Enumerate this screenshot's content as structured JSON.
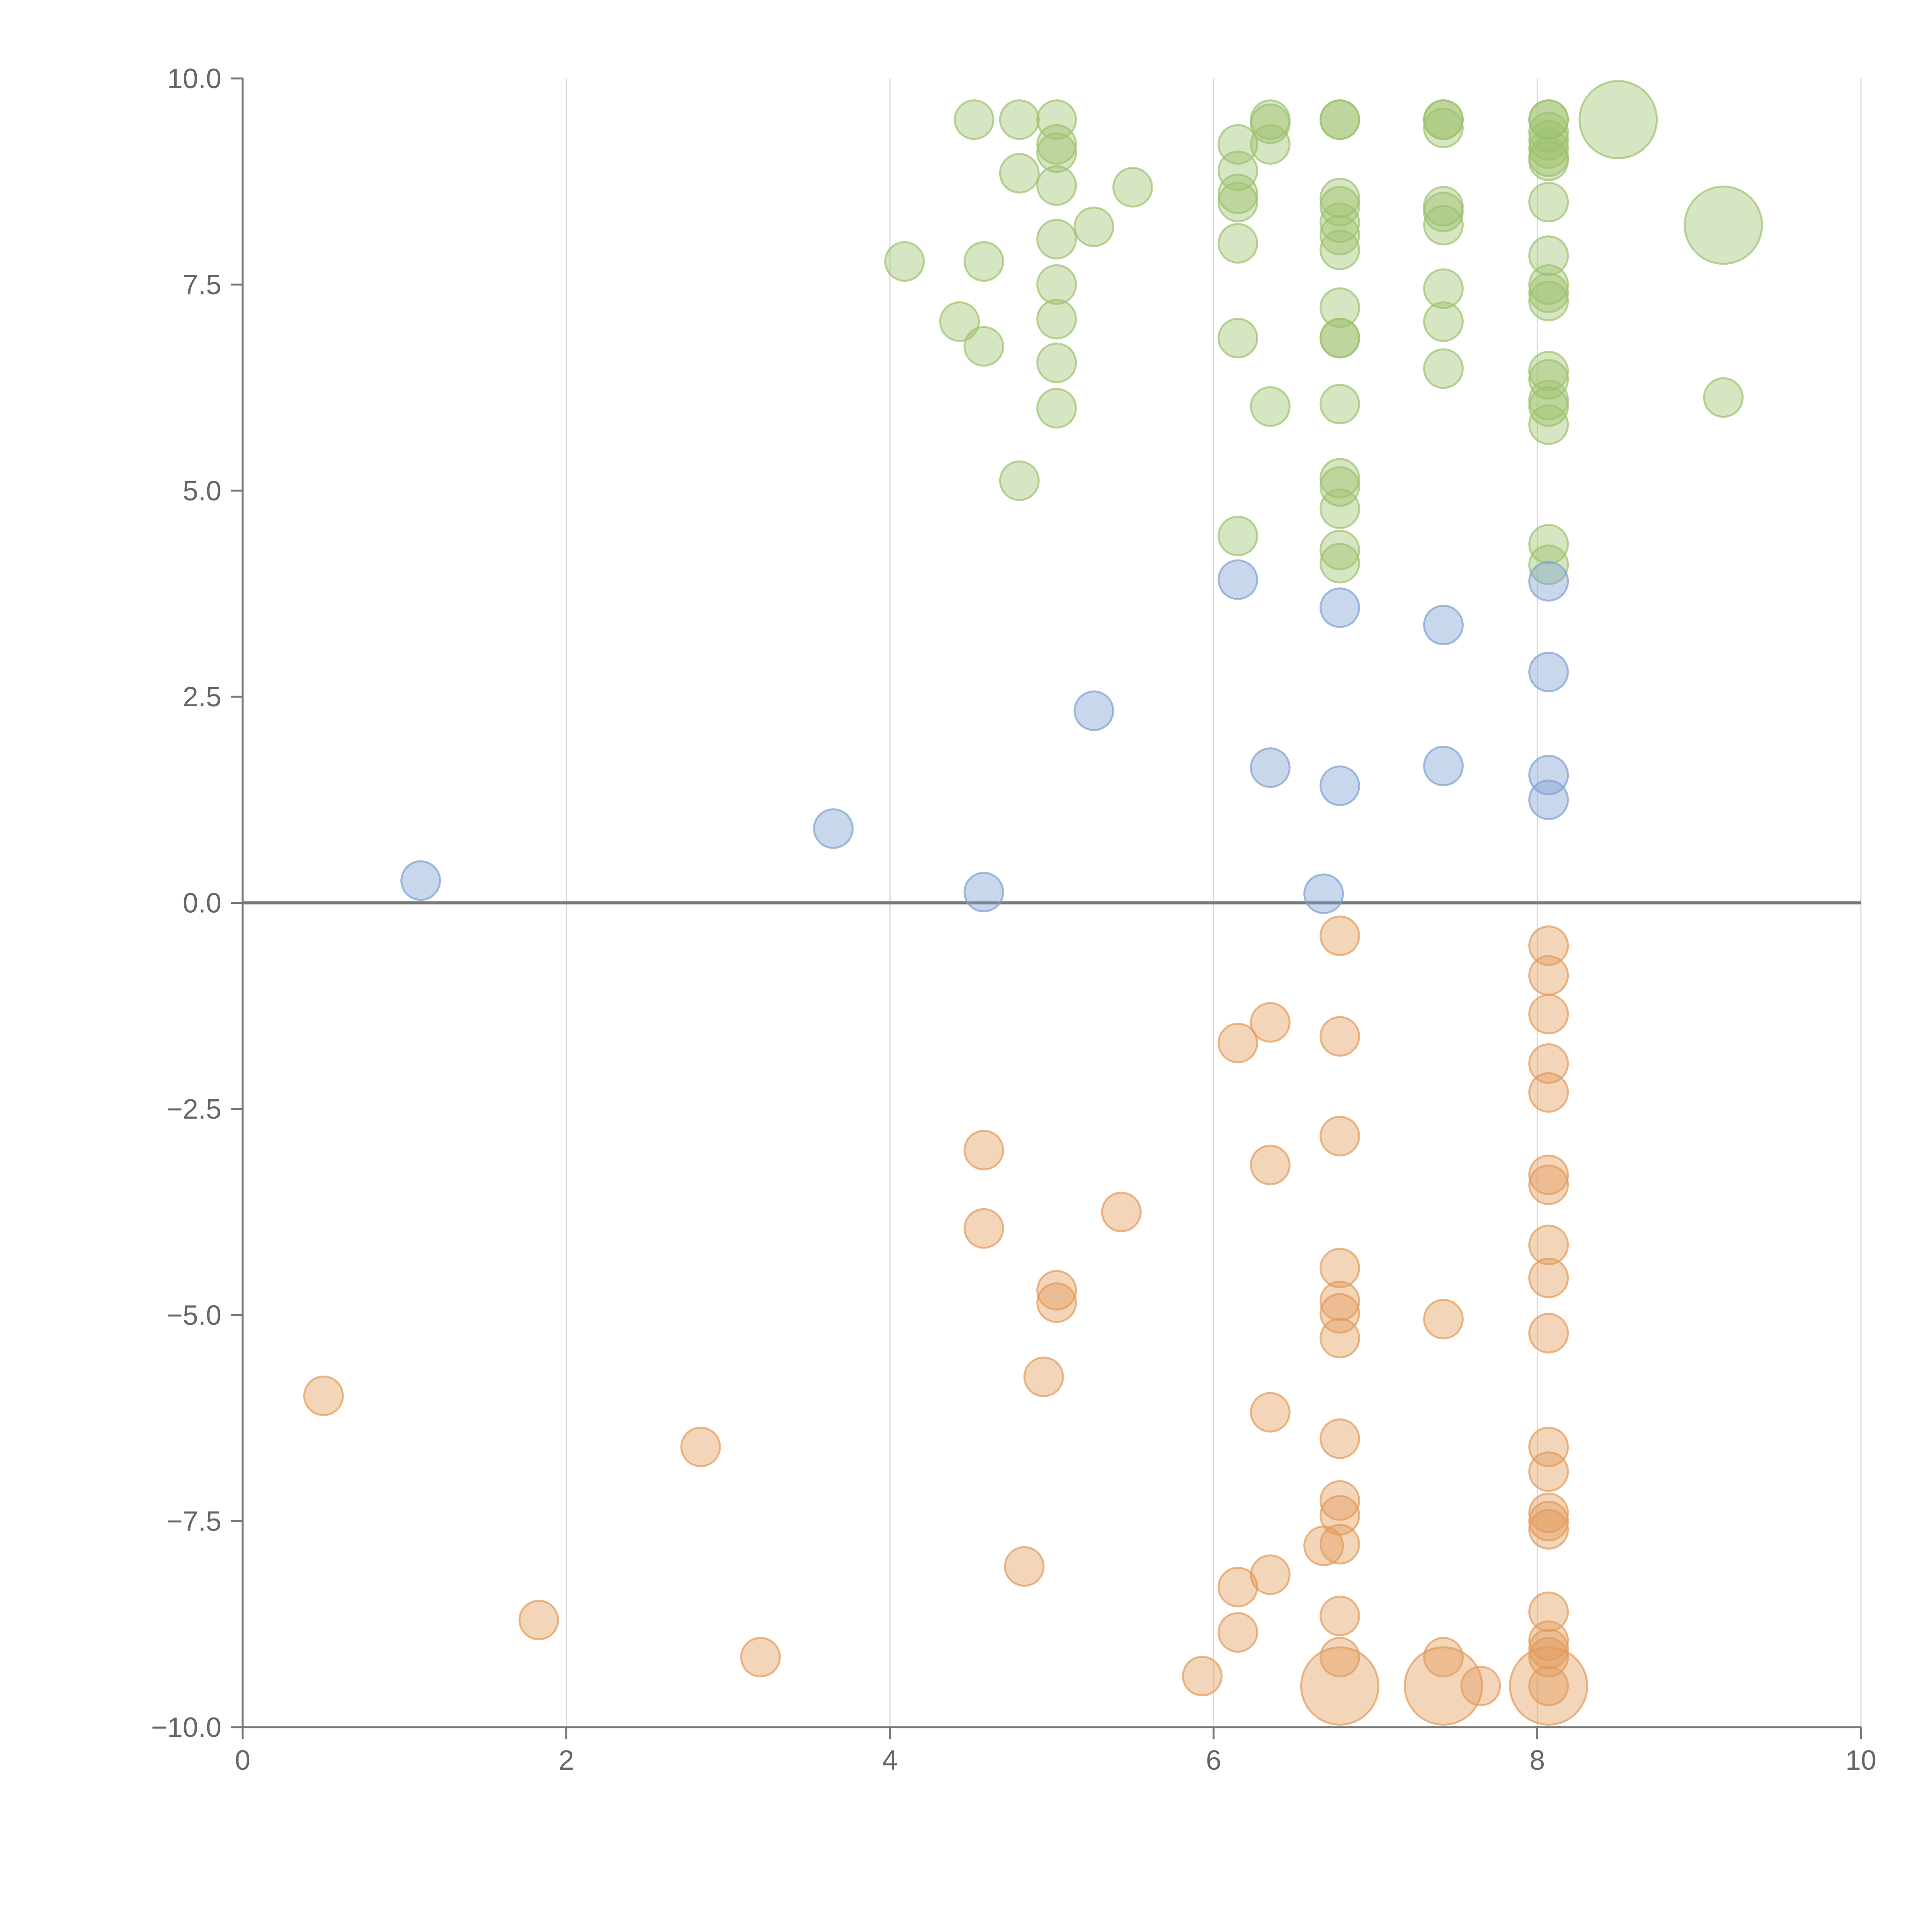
{
  "chart_data": {
    "type": "scatter",
    "title": "",
    "xlabel": "",
    "ylabel": "",
    "xlim": [
      0,
      10
    ],
    "ylim": [
      -10,
      10
    ],
    "x_ticks": [
      "0",
      "2",
      "4",
      "6",
      "8",
      "10"
    ],
    "y_ticks": [
      "10.0",
      "7.5",
      "5.0",
      "2.5",
      "0.0",
      "−2.5",
      "−5.0",
      "−7.5",
      "−10.0"
    ],
    "x_tick_values": [
      0,
      2,
      4,
      6,
      8,
      10
    ],
    "y_tick_values": [
      10,
      7.5,
      5,
      2.5,
      0,
      -2.5,
      -5,
      -7.5,
      -10
    ],
    "grid": "vertical",
    "zero_line": true,
    "legend": "none",
    "series": [
      {
        "color": "#9dc26e",
        "points": [
          [
            4.52,
            9.5
          ],
          [
            4.8,
            9.5
          ],
          [
            5.03,
            9.5
          ],
          [
            5.03,
            9.2
          ],
          [
            5.03,
            9.1
          ],
          [
            4.8,
            8.85
          ],
          [
            5.03,
            8.7
          ],
          [
            5.5,
            8.68
          ],
          [
            5.26,
            8.2
          ],
          [
            5.03,
            8.05
          ],
          [
            4.58,
            7.78
          ],
          [
            4.09,
            7.78
          ],
          [
            5.03,
            7.5
          ],
          [
            4.43,
            7.05
          ],
          [
            5.03,
            7.08
          ],
          [
            4.58,
            6.75
          ],
          [
            5.03,
            6.55
          ],
          [
            5.03,
            6.0
          ],
          [
            4.8,
            5.12
          ],
          [
            6.15,
            9.2
          ],
          [
            6.35,
            9.5
          ],
          [
            6.35,
            9.45
          ],
          [
            6.35,
            9.2
          ],
          [
            6.15,
            8.88
          ],
          [
            6.15,
            8.6
          ],
          [
            6.15,
            8.5
          ],
          [
            6.15,
            8.0
          ],
          [
            6.15,
            6.85
          ],
          [
            6.35,
            6.02
          ],
          [
            6.15,
            4.45
          ],
          [
            6.78,
            9.5
          ],
          [
            6.78,
            9.5
          ],
          [
            6.78,
            8.55
          ],
          [
            6.78,
            8.45
          ],
          [
            6.78,
            8.25
          ],
          [
            6.78,
            8.1
          ],
          [
            6.78,
            7.92
          ],
          [
            6.78,
            7.22
          ],
          [
            6.78,
            6.85
          ],
          [
            6.78,
            6.85
          ],
          [
            6.78,
            6.05
          ],
          [
            6.78,
            5.15
          ],
          [
            6.78,
            5.05
          ],
          [
            6.78,
            4.78
          ],
          [
            6.78,
            4.28
          ],
          [
            6.78,
            4.12
          ],
          [
            7.42,
            9.5
          ],
          [
            7.42,
            9.5
          ],
          [
            7.42,
            9.4
          ],
          [
            7.42,
            8.45
          ],
          [
            7.42,
            8.38
          ],
          [
            7.42,
            8.22
          ],
          [
            7.42,
            7.45
          ],
          [
            7.42,
            7.05
          ],
          [
            7.42,
            6.48
          ],
          [
            8.07,
            9.5
          ],
          [
            8.07,
            9.5
          ],
          [
            8.07,
            9.35
          ],
          [
            8.07,
            9.25
          ],
          [
            8.07,
            9.15
          ],
          [
            8.07,
            9.05
          ],
          [
            8.07,
            9.0
          ],
          [
            8.07,
            8.5
          ],
          [
            8.07,
            7.85
          ],
          [
            8.07,
            7.5
          ],
          [
            8.07,
            7.4
          ],
          [
            8.07,
            7.3
          ],
          [
            8.07,
            6.45
          ],
          [
            8.07,
            6.35
          ],
          [
            8.07,
            6.1
          ],
          [
            8.07,
            6.02
          ],
          [
            8.07,
            5.8
          ],
          [
            8.07,
            4.35
          ],
          [
            8.07,
            4.1
          ],
          [
            9.15,
            6.13
          ]
        ],
        "big_points": [
          [
            8.5,
            9.5
          ],
          [
            9.15,
            8.22
          ]
        ]
      },
      {
        "color": "#7f9fd1",
        "points": [
          [
            1.1,
            0.27
          ],
          [
            3.65,
            0.9
          ],
          [
            4.58,
            0.13
          ],
          [
            5.26,
            2.33
          ],
          [
            6.15,
            3.92
          ],
          [
            6.35,
            1.64
          ],
          [
            6.78,
            3.58
          ],
          [
            6.78,
            1.42
          ],
          [
            6.68,
            0.11
          ],
          [
            7.42,
            3.37
          ],
          [
            7.42,
            1.66
          ],
          [
            8.07,
            3.9
          ],
          [
            8.07,
            2.8
          ],
          [
            8.07,
            1.55
          ],
          [
            8.07,
            1.25
          ]
        ],
        "big_points": []
      },
      {
        "color": "#e39a5b",
        "points": [
          [
            0.5,
            -5.98
          ],
          [
            1.83,
            -8.7
          ],
          [
            2.83,
            -6.6
          ],
          [
            3.2,
            -9.15
          ],
          [
            4.58,
            -3.0
          ],
          [
            4.58,
            -3.95
          ],
          [
            4.83,
            -8.05
          ],
          [
            4.95,
            -5.75
          ],
          [
            5.03,
            -4.7
          ],
          [
            5.03,
            -4.85
          ],
          [
            5.43,
            -3.75
          ],
          [
            5.93,
            -9.38
          ],
          [
            6.15,
            -1.7
          ],
          [
            6.15,
            -8.3
          ],
          [
            6.15,
            -8.85
          ],
          [
            6.35,
            -1.45
          ],
          [
            6.35,
            -3.18
          ],
          [
            6.35,
            -6.18
          ],
          [
            6.35,
            -8.15
          ],
          [
            6.78,
            -0.4
          ],
          [
            6.78,
            -1.62
          ],
          [
            6.78,
            -2.83
          ],
          [
            6.78,
            -4.43
          ],
          [
            6.78,
            -4.83
          ],
          [
            6.78,
            -4.98
          ],
          [
            6.78,
            -5.28
          ],
          [
            6.78,
            -6.5
          ],
          [
            6.78,
            -7.25
          ],
          [
            6.78,
            -7.43
          ],
          [
            6.78,
            -7.78
          ],
          [
            6.68,
            -7.8
          ],
          [
            6.78,
            -8.65
          ],
          [
            6.78,
            -9.15
          ],
          [
            7.42,
            -5.05
          ],
          [
            7.42,
            -9.15
          ],
          [
            7.65,
            -9.5
          ],
          [
            8.07,
            -0.52
          ],
          [
            8.07,
            -0.88
          ],
          [
            8.07,
            -1.35
          ],
          [
            8.07,
            -1.95
          ],
          [
            8.07,
            -2.3
          ],
          [
            8.07,
            -3.3
          ],
          [
            8.07,
            -3.42
          ],
          [
            8.07,
            -4.15
          ],
          [
            8.07,
            -4.55
          ],
          [
            8.07,
            -5.22
          ],
          [
            8.07,
            -6.6
          ],
          [
            8.07,
            -6.9
          ],
          [
            8.07,
            -7.4
          ],
          [
            8.07,
            -7.5
          ],
          [
            8.07,
            -7.6
          ],
          [
            8.07,
            -8.6
          ],
          [
            8.07,
            -8.95
          ],
          [
            8.07,
            -9.05
          ],
          [
            8.07,
            -9.15
          ],
          [
            8.07,
            -9.5
          ]
        ],
        "big_points": [
          [
            6.78,
            -9.5
          ],
          [
            7.42,
            -9.5
          ],
          [
            8.07,
            -9.5
          ]
        ]
      }
    ]
  }
}
